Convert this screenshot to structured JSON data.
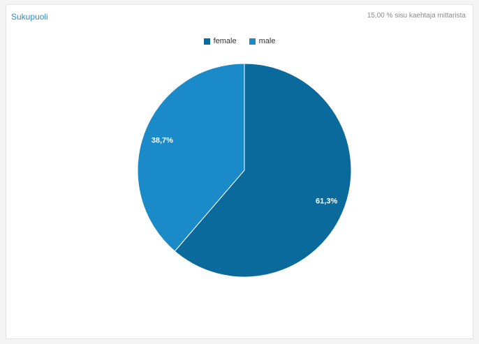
{
  "card": {
    "title": "Sukupuoli",
    "note": "15,00 % sisu kaehtaja mittarista"
  },
  "chart_data": {
    "type": "pie",
    "title": "Sukupuoli",
    "legend_position": "top-center",
    "slices": [
      {
        "label": "female",
        "value": 61.3,
        "display": "61,3%",
        "color": "#0a6a9c"
      },
      {
        "label": "male",
        "value": 38.7,
        "display": "38,7%",
        "color": "#1a8ac8"
      }
    ]
  }
}
